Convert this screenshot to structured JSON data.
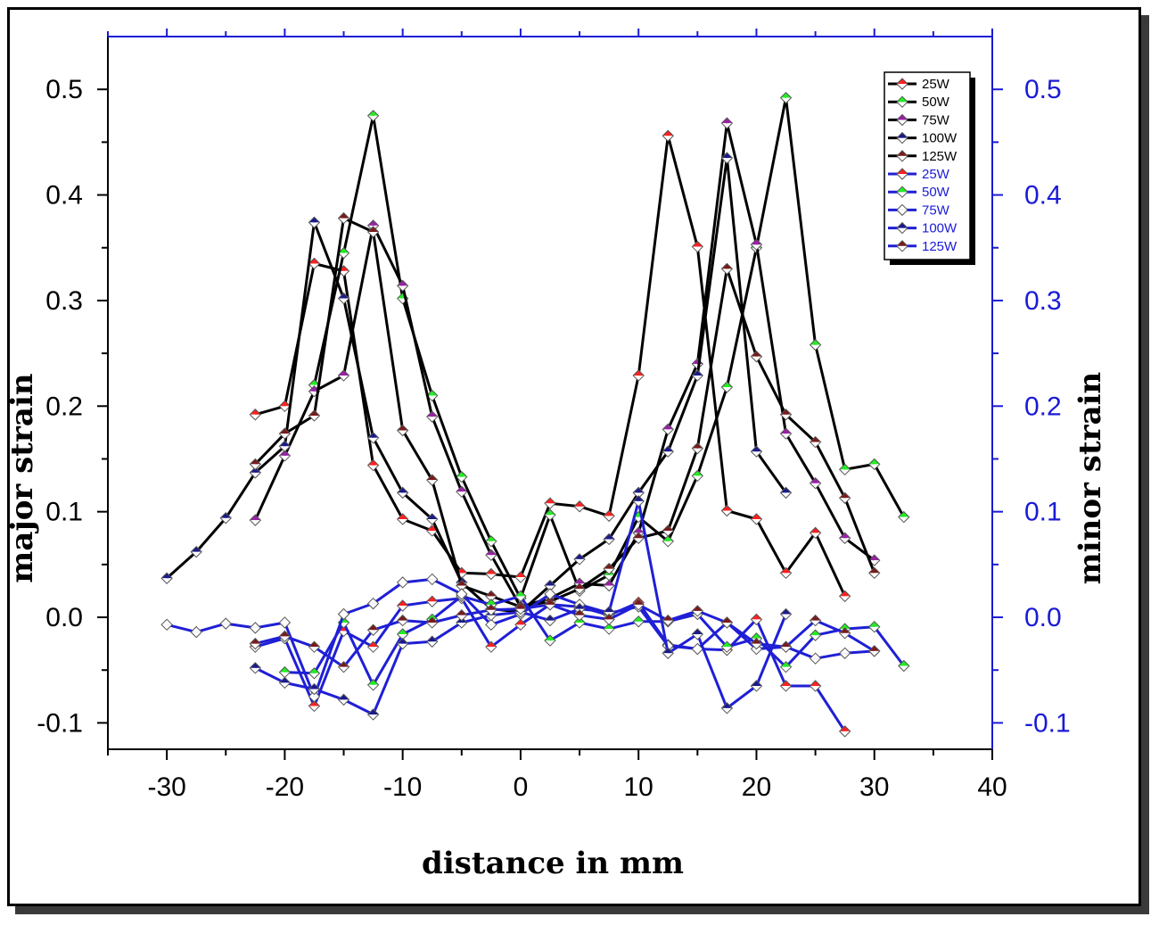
{
  "chart_data": {
    "type": "line",
    "title": "",
    "xlabel": "distance in mm",
    "ylabel": "major strain",
    "y2label": "minor strain",
    "xlim": [
      -35,
      40
    ],
    "ylim": [
      -0.125,
      0.55
    ],
    "y2lim": [
      -0.125,
      0.55
    ],
    "x_ticks": [
      -30,
      -20,
      -10,
      0,
      10,
      20,
      30,
      40
    ],
    "x_tick_labels": [
      "-30",
      "-20",
      "-10",
      "0",
      "10",
      "20",
      "30",
      "40"
    ],
    "y_ticks": [
      -0.1,
      0.0,
      0.1,
      0.2,
      0.3,
      0.4,
      0.5
    ],
    "y_tick_labels": [
      "-0.1",
      "0.0",
      "0.1",
      "0.2",
      "0.3",
      "0.4",
      "0.5"
    ],
    "y2_tick_labels": [
      "-0.1",
      "0.0",
      "0.1",
      "0.2",
      "0.3",
      "0.4",
      "0.5"
    ],
    "grid": false,
    "legend_position": "top-right",
    "colors": {
      "major_line": "#000000",
      "minor_line": "#1f1fd6",
      "right_axis": "#1a1ad6",
      "legend_minor_text": "#1a1ad6"
    },
    "series": [
      {
        "name": "25W",
        "axis": "major",
        "marker_color": "#ff2020",
        "x": [
          -22.5,
          -20,
          -17.5,
          -15,
          -12.5,
          -10,
          -7.5,
          -5,
          -2.5,
          0,
          2.5,
          5,
          7.5,
          10,
          12.5,
          15,
          17.5,
          20,
          22.5,
          25,
          27.5
        ],
        "y": [
          0.192,
          0.2,
          0.335,
          0.328,
          0.144,
          0.093,
          0.082,
          0.042,
          0.041,
          0.038,
          0.108,
          0.105,
          0.096,
          0.229,
          0.456,
          0.351,
          0.101,
          0.093,
          0.042,
          0.08,
          0.02
        ]
      },
      {
        "name": "50W",
        "axis": "major",
        "marker_color": "#22ee22",
        "x": [
          -17.5,
          -15,
          -12.5,
          -10,
          -7.5,
          -5,
          -2.5,
          0,
          2.5,
          5,
          7.5,
          10,
          12.5,
          15,
          17.5,
          20,
          22.5,
          25,
          27.5,
          30,
          32.5
        ],
        "y": [
          0.22,
          0.345,
          0.475,
          0.302,
          0.21,
          0.133,
          0.072,
          0.018,
          0.097,
          0.025,
          0.04,
          0.095,
          0.072,
          0.134,
          0.218,
          0.35,
          0.492,
          0.258,
          0.14,
          0.145,
          0.095
        ]
      },
      {
        "name": "75W",
        "axis": "major",
        "marker_color": "#9b1fa8",
        "x": [
          -22.5,
          -20,
          -17.5,
          -15,
          -12.5,
          -10,
          -7.5,
          -5,
          -2.5,
          0,
          2.5,
          5,
          7.5,
          10,
          12.5,
          15,
          17.5,
          20,
          22.5,
          25,
          27.5,
          30
        ],
        "y": [
          0.092,
          0.153,
          0.214,
          0.229,
          0.371,
          0.314,
          0.19,
          0.119,
          0.059,
          0.01,
          0.018,
          0.032,
          0.03,
          0.08,
          0.178,
          0.24,
          0.468,
          0.353,
          0.174,
          0.127,
          0.075,
          0.054
        ]
      },
      {
        "name": "100W",
        "axis": "major",
        "marker_color": "#1a1a8c",
        "x": [
          -30,
          -27.5,
          -25,
          -22.5,
          -20,
          -17.5,
          -15,
          -12.5,
          -10,
          -7.5,
          -5,
          -2.5,
          0,
          2.5,
          5,
          7.5,
          10,
          12.5,
          15,
          17.5,
          20,
          22.5
        ],
        "y": [
          0.037,
          0.062,
          0.094,
          0.137,
          0.162,
          0.374,
          0.302,
          0.17,
          0.118,
          0.093,
          0.033,
          0.008,
          0.005,
          0.03,
          0.055,
          0.074,
          0.118,
          0.157,
          0.229,
          0.435,
          0.157,
          0.118
        ]
      },
      {
        "name": "125W",
        "axis": "major",
        "marker_color": "#7a1a1a",
        "x": [
          -22.5,
          -20,
          -17.5,
          -15,
          -12.5,
          -10,
          -7.5,
          -5,
          -2.5,
          0,
          2.5,
          5,
          7.5,
          10,
          12.5,
          15,
          17.5,
          20,
          22.5,
          25,
          27.5,
          30
        ],
        "y": [
          0.145,
          0.174,
          0.191,
          0.378,
          0.365,
          0.177,
          0.13,
          0.03,
          0.02,
          0.01,
          0.015,
          0.027,
          0.046,
          0.075,
          0.082,
          0.16,
          0.33,
          0.247,
          0.192,
          0.166,
          0.113,
          0.042
        ]
      },
      {
        "name": "25W",
        "axis": "minor",
        "marker_color": "#ff2020",
        "x": [
          -22.5,
          -20,
          -17.5,
          -15,
          -12.5,
          -10,
          -7.5,
          -5,
          -2.5,
          0,
          2.5,
          5,
          7.5,
          10,
          12.5,
          15,
          17.5,
          20,
          22.5,
          25,
          27.5
        ],
        "y": [
          -0.028,
          -0.02,
          -0.084,
          -0.013,
          -0.028,
          0.011,
          0.015,
          0.018,
          -0.028,
          -0.007,
          0.012,
          0.01,
          0.002,
          0.014,
          -0.026,
          -0.03,
          -0.031,
          -0.002,
          -0.065,
          -0.065,
          -0.108
        ]
      },
      {
        "name": "50W",
        "axis": "minor",
        "marker_color": "#22ee22",
        "x": [
          -20,
          -17.5,
          -15,
          -12.5,
          -10,
          -7.5,
          -5,
          -2.5,
          0,
          2.5,
          5,
          7.5,
          10,
          12.5,
          15,
          17.5,
          20,
          22.5,
          25,
          27.5,
          30,
          32.5
        ],
        "y": [
          -0.052,
          -0.053,
          -0.005,
          -0.064,
          -0.016,
          -0.002,
          0.02,
          0.012,
          0.02,
          -0.022,
          -0.005,
          -0.011,
          -0.004,
          -0.004,
          0.003,
          -0.028,
          -0.02,
          -0.047,
          -0.017,
          -0.011,
          -0.009,
          -0.046
        ]
      },
      {
        "name": "75W",
        "axis": "minor",
        "marker_color": "#ffffff",
        "x": [
          -30,
          -27.5,
          -25,
          -22.5,
          -20,
          -17.5,
          -15,
          -12.5,
          -10,
          -7.5,
          -5,
          -2.5,
          0,
          2.5,
          5,
          7.5,
          10,
          12.5,
          15,
          17.5,
          20,
          22.5,
          25,
          27.5,
          30
        ],
        "y": [
          -0.007,
          -0.014,
          -0.006,
          -0.01,
          -0.005,
          -0.075,
          0.003,
          0.013,
          0.033,
          0.036,
          0.022,
          -0.007,
          0.003,
          0.022,
          0.012,
          0.004,
          0.01,
          -0.027,
          -0.03,
          -0.005,
          -0.03,
          -0.028,
          -0.039,
          -0.034,
          -0.032
        ]
      },
      {
        "name": "100W",
        "axis": "minor",
        "marker_color": "#1a1a8c",
        "x": [
          -22.5,
          -20,
          -17.5,
          -15,
          -12.5,
          -10,
          -7.5,
          -5,
          -2.5,
          0,
          2.5,
          5,
          7.5,
          10,
          12.5,
          15,
          17.5,
          20,
          22.5
        ],
        "y": [
          -0.048,
          -0.062,
          -0.068,
          -0.078,
          -0.092,
          -0.025,
          -0.023,
          -0.005,
          0.002,
          0.005,
          -0.003,
          0.008,
          0.005,
          0.11,
          -0.034,
          -0.016,
          -0.086,
          -0.065,
          0.003
        ]
      },
      {
        "name": "125W",
        "axis": "minor",
        "marker_color": "#7a1a1a",
        "x": [
          -22.5,
          -20,
          -17.5,
          -15,
          -12.5,
          -10,
          -7.5,
          -5,
          -2.5,
          0,
          2.5,
          5,
          7.5,
          10,
          12.5,
          15,
          17.5,
          20,
          22.5,
          25,
          27.5,
          30
        ],
        "y": [
          -0.025,
          -0.018,
          -0.028,
          -0.047,
          -0.012,
          -0.003,
          -0.005,
          0.002,
          0.007,
          0.008,
          0.012,
          0.002,
          -0.002,
          0.012,
          -0.003,
          0.006,
          -0.005,
          -0.025,
          -0.028,
          -0.003,
          -0.015,
          -0.032
        ]
      }
    ]
  }
}
